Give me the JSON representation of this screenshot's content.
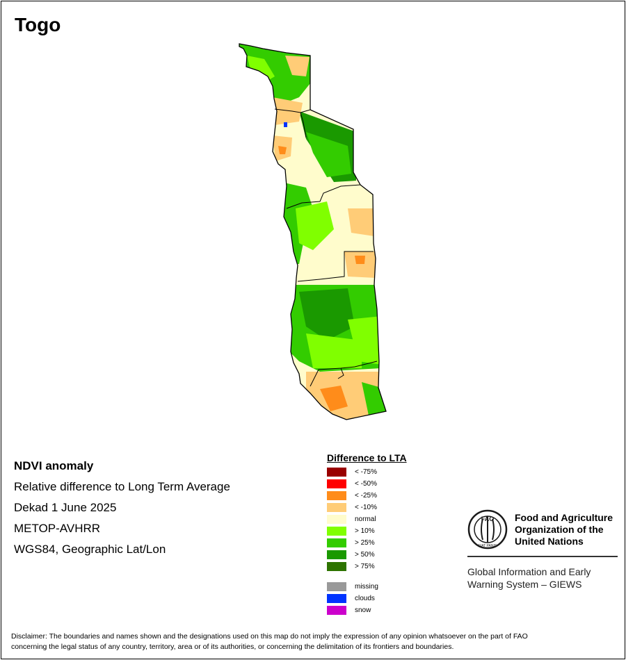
{
  "title": "Togo",
  "info": {
    "heading": "NDVI anomaly",
    "line1": "Relative difference to Long Term Average",
    "line2": "Dekad 1 June 2025",
    "line3": "METOP-AVHRR",
    "line4": "WGS84, Geographic Lat/Lon"
  },
  "legend": {
    "title": "Difference to LTA",
    "classes": [
      {
        "label": "< -75%",
        "color": "#990000"
      },
      {
        "label": "< -50%",
        "color": "#ff0000"
      },
      {
        "label": "< -25%",
        "color": "#ff8c1a"
      },
      {
        "label": "< -10%",
        "color": "#ffcc77"
      },
      {
        "label": "normal",
        "color": "#fffccc"
      },
      {
        "label": "> 10%",
        "color": "#80ff00"
      },
      {
        "label": "> 25%",
        "color": "#33cc00"
      },
      {
        "label": "> 50%",
        "color": "#1a9900"
      },
      {
        "label": "> 75%",
        "color": "#2d7300"
      }
    ],
    "extra": [
      {
        "label": "missing",
        "color": "#999999"
      },
      {
        "label": "clouds",
        "color": "#0033ff"
      },
      {
        "label": "snow",
        "color": "#cc00cc"
      }
    ]
  },
  "fao": {
    "logo_icon": "fao-emblem-icon",
    "logo_text": "FAO",
    "logo_motto": "FIAT PANIS",
    "name_line1": "Food and Agriculture",
    "name_line2": "Organization of the",
    "name_line3": "United Nations",
    "giews_line1": "Global Information and Early",
    "giews_line2": "Warning System – GIEWS"
  },
  "disclaimer": {
    "line1": "Disclaimer: The boundaries and names shown and the designations used on this map do not imply the expression of any opinion whatsoever on the part of FAO",
    "line2": "concerning the legal status of any country, territory, area or of its authorities, or concerning the delimitation of its frontiers and boundaries."
  },
  "map": {
    "country": "Togo",
    "colors": {
      "normal": "#fffccc",
      "light_green": "#80ff00",
      "green": "#33cc00",
      "dark_green": "#1a9900",
      "light_orange": "#ffcc77",
      "orange": "#ff8c1a",
      "border": "#000000"
    }
  }
}
